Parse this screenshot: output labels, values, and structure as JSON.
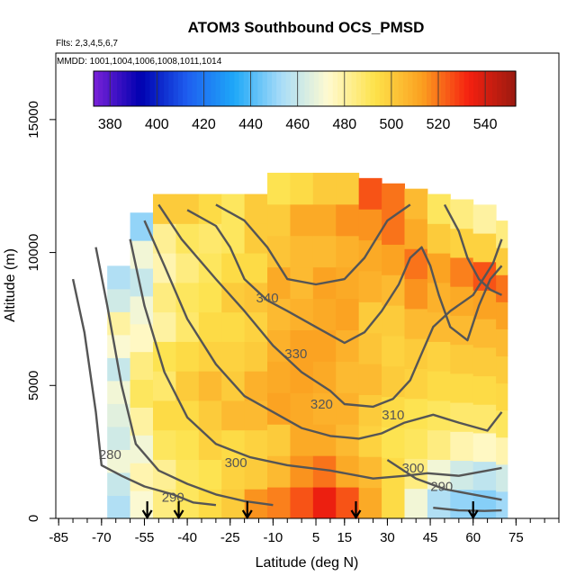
{
  "chart_data": {
    "type": "heatmap",
    "title": "ATOM3 Southbound OCS_PMSD",
    "flights_note": "Flts: 2,3,4,5,6,7",
    "dates_note": "MMDD: 1001,1004,1006,1008,1011,1014",
    "xlabel": "Latitude (deg N)",
    "ylabel": "Altitude (m)",
    "xlim": [
      -86,
      90
    ],
    "ylim": [
      0,
      17500
    ],
    "x_ticks": [
      -85,
      -70,
      -55,
      -40,
      -25,
      -10,
      5,
      15,
      30,
      45,
      60,
      75
    ],
    "y_ticks": [
      0,
      5000,
      10000,
      15000
    ],
    "y_tick_labels": [
      "0",
      "5000",
      "10000",
      "15000"
    ],
    "colorbar": {
      "ticks": [
        380,
        400,
        420,
        440,
        460,
        480,
        500,
        520,
        540
      ],
      "range": [
        373,
        553
      ],
      "colors": [
        "#7a22d8",
        "#0000b0",
        "#1e5ef0",
        "#1ea8f8",
        "#a8dcf8",
        "#fffad0",
        "#fde24a",
        "#fba020",
        "#f52010",
        "#9a1a10"
      ]
    },
    "contours": [
      {
        "label": "340",
        "x": -12,
        "y": 8300
      },
      {
        "label": "330",
        "x": -2,
        "y": 6200
      },
      {
        "label": "320",
        "x": 7,
        "y": 4300
      },
      {
        "label": "310",
        "x": 32,
        "y": 3900
      },
      {
        "label": "300",
        "x": -23,
        "y": 2100
      },
      {
        "label": "300",
        "x": 39,
        "y": 1900
      },
      {
        "label": "290",
        "x": -45,
        "y": 800
      },
      {
        "label": "290",
        "x": 49,
        "y": 1200
      },
      {
        "label": "280",
        "x": -67,
        "y": 2400
      }
    ],
    "profile_markers_x": [
      -54,
      -43,
      -19,
      19,
      60
    ],
    "columns": [
      {
        "x0": -68,
        "x1": -60,
        "top": 9500,
        "values": [
          455,
          460,
          470,
          462,
          466,
          470,
          460,
          472,
          480,
          462,
          455
        ]
      },
      {
        "x0": -60,
        "x1": -52,
        "top": 11500,
        "values": [
          472,
          478,
          470,
          480,
          490,
          485,
          475,
          470,
          460,
          470,
          450
        ]
      },
      {
        "x0": -52,
        "x1": -44,
        "top": 12200,
        "values": [
          485,
          482,
          490,
          495,
          488,
          492,
          480,
          485,
          478,
          482,
          500
        ]
      },
      {
        "x0": -44,
        "x1": -36,
        "top": 12200,
        "values": [
          490,
          490,
          492,
          495,
          500,
          495,
          488,
          490,
          485,
          490,
          500
        ]
      },
      {
        "x0": -36,
        "x1": -28,
        "top": 12200,
        "values": [
          495,
          492,
          498,
          500,
          505,
          498,
          495,
          492,
          490,
          488,
          495
        ]
      },
      {
        "x0": -28,
        "x1": -20,
        "top": 12200,
        "values": [
          500,
          498,
          495,
          505,
          500,
          498,
          495,
          500,
          495,
          490,
          490
        ]
      },
      {
        "x0": -20,
        "x1": -12,
        "top": 12200,
        "values": [
          515,
          500,
          498,
          505,
          508,
          500,
          498,
          502,
          495,
          500,
          500
        ]
      },
      {
        "x0": -12,
        "x1": -4,
        "top": 13000,
        "values": [
          518,
          505,
          500,
          512,
          510,
          508,
          505,
          510,
          502,
          500,
          492
        ]
      },
      {
        "x0": -4,
        "x1": 4,
        "top": 13000,
        "values": [
          525,
          515,
          510,
          510,
          512,
          512,
          508,
          505,
          505,
          510,
          495
        ]
      },
      {
        "x0": 4,
        "x1": 12,
        "top": 13000,
        "values": [
          535,
          520,
          510,
          508,
          510,
          512,
          510,
          512,
          505,
          510,
          500
        ]
      },
      {
        "x0": 12,
        "x1": 20,
        "top": 13000,
        "values": [
          525,
          510,
          505,
          508,
          505,
          508,
          512,
          510,
          508,
          515,
          500
        ]
      },
      {
        "x0": 20,
        "x1": 28,
        "top": 12800,
        "values": [
          510,
          505,
          498,
          500,
          505,
          502,
          500,
          508,
          510,
          515,
          525
        ]
      },
      {
        "x0": 28,
        "x1": 36,
        "top": 12600,
        "values": [
          495,
          495,
          492,
          495,
          500,
          498,
          500,
          505,
          512,
          520,
          520
        ]
      },
      {
        "x0": 36,
        "x1": 44,
        "top": 12400,
        "values": [
          470,
          485,
          490,
          492,
          498,
          500,
          505,
          515,
          520,
          510,
          505
        ]
      },
      {
        "x0": 44,
        "x1": 52,
        "top": 12200,
        "values": [
          455,
          470,
          485,
          490,
          495,
          498,
          505,
          508,
          512,
          500,
          490
        ]
      },
      {
        "x0": 52,
        "x1": 60,
        "top": 12000,
        "values": [
          450,
          462,
          478,
          488,
          495,
          500,
          505,
          510,
          518,
          498,
          485
        ]
      },
      {
        "x0": 60,
        "x1": 68,
        "top": 11800,
        "values": [
          448,
          458,
          475,
          488,
          495,
          500,
          505,
          512,
          525,
          498,
          480
        ]
      },
      {
        "x0": 68,
        "x1": 72,
        "top": 11200,
        "values": [
          452,
          462,
          478,
          490,
          496,
          500,
          505,
          512,
          520,
          500,
          485
        ]
      }
    ]
  }
}
